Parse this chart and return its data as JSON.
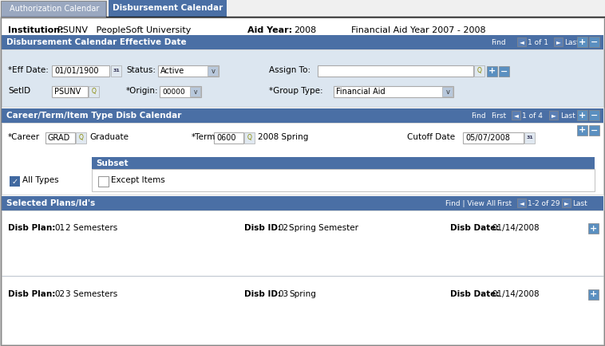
{
  "fig_width": 7.58,
  "fig_height": 4.34,
  "bg_color": "#f0f0f0",
  "tab_inactive_label": "Authorization Calendar",
  "tab_active_label": "Disbursement Calendar",
  "header_institution_label": "Institution:",
  "header_institution_val": "PSUNV   PeopleSoft University",
  "header_aid_year_label": "Aid Year:",
  "header_aid_year_val": "2008",
  "header_fin_aid": "Financial Aid Year 2007 - 2008",
  "s1_title": "Disbursement Calendar Effective Date",
  "s2_title": "Career/Term/Item Type Disb Calendar",
  "s3_title": "Selected Plans/Id's",
  "header_blue": "#4a6fa5",
  "light_blue_bg": "#dce6f0",
  "white": "#ffffff",
  "gray_border": "#aaaaaa",
  "plus_btn": "#5a8fc0",
  "nav_btn": "#5a7fb5",
  "tab_inactive_bg": "#8090b0",
  "tab_active_bg": "#4a6fa5",
  "checkbox_blue": "#4169a0",
  "s3_rows": [
    {
      "plan_num": "01",
      "plan_desc": "2 Semesters",
      "id_num": "02",
      "id_desc": "Spring Semester",
      "date_val": "01/14/2008"
    },
    {
      "plan_num": "02",
      "plan_desc": "3 Semesters",
      "id_num": "03",
      "id_desc": "Spring",
      "date_val": "01/14/2008"
    }
  ]
}
